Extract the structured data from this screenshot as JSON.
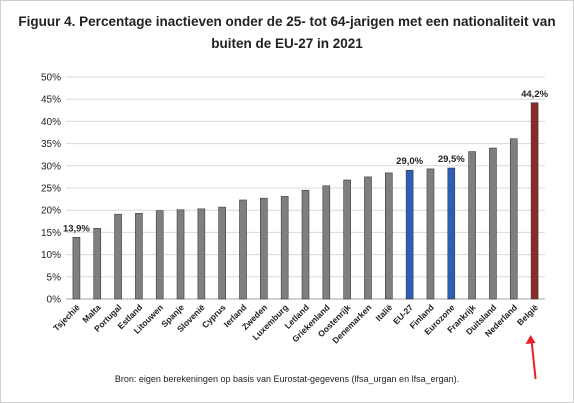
{
  "title_lines": [
    "Figuur 4. Percentage inactieven onder de 25- tot 64-jarigen met een nationaliteit van",
    "buiten de EU-27 in 2021"
  ],
  "source": "Bron: eigen berekeningen op basis van Eurostat-gegevens (lfsa_urgan en lfsa_ergan).",
  "colors": {
    "default_bar": "#7f7f7f",
    "highlight_bar": "#2e5fb8",
    "belgium_bar": "#8b2a2a",
    "arrow": "#e8202a",
    "grid": "#d9d9d9",
    "text": "#222222"
  },
  "chart_data": {
    "type": "bar",
    "categories": [
      "Tsjechië",
      "Malta",
      "Portugal",
      "Estland",
      "Litouwen",
      "Spanje",
      "Slovenië",
      "Cyprus",
      "Ierland",
      "Zweden",
      "Luxemburg",
      "Letland",
      "Griekenland",
      "Oostenrijk",
      "Denemarken",
      "Italië",
      "EU-27",
      "Finland",
      "Eurozone",
      "Frankrijk",
      "Duitsland",
      "Nederland",
      "België"
    ],
    "values": [
      13.9,
      15.9,
      19.1,
      19.3,
      19.9,
      20.1,
      20.3,
      20.7,
      22.3,
      22.7,
      23.1,
      24.5,
      25.5,
      26.8,
      27.5,
      28.4,
      29.0,
      29.3,
      29.5,
      33.2,
      34.0,
      36.1,
      44.2
    ],
    "bar_colors": [
      "default",
      "default",
      "default",
      "default",
      "default",
      "default",
      "default",
      "default",
      "default",
      "default",
      "default",
      "default",
      "default",
      "default",
      "default",
      "default",
      "highlight",
      "default",
      "highlight",
      "default",
      "default",
      "default",
      "belgium"
    ],
    "data_labels": [
      {
        "category": "Tsjechië",
        "text": "13,9%"
      },
      {
        "category": "EU-27",
        "text": "29,0%"
      },
      {
        "category": "Eurozone",
        "text": "29,5%"
      },
      {
        "category": "België",
        "text": "44,2%"
      }
    ],
    "ylim": [
      0,
      50
    ],
    "yticks": [
      0,
      5,
      10,
      15,
      20,
      25,
      30,
      35,
      40,
      45,
      50
    ],
    "ytick_labels": [
      "0%",
      "5%",
      "10%",
      "15%",
      "20%",
      "25%",
      "30%",
      "35%",
      "40%",
      "45%",
      "50%"
    ],
    "grid": true,
    "legend": "none",
    "annotation": {
      "type": "arrow",
      "target": "België",
      "direction": "up"
    }
  }
}
